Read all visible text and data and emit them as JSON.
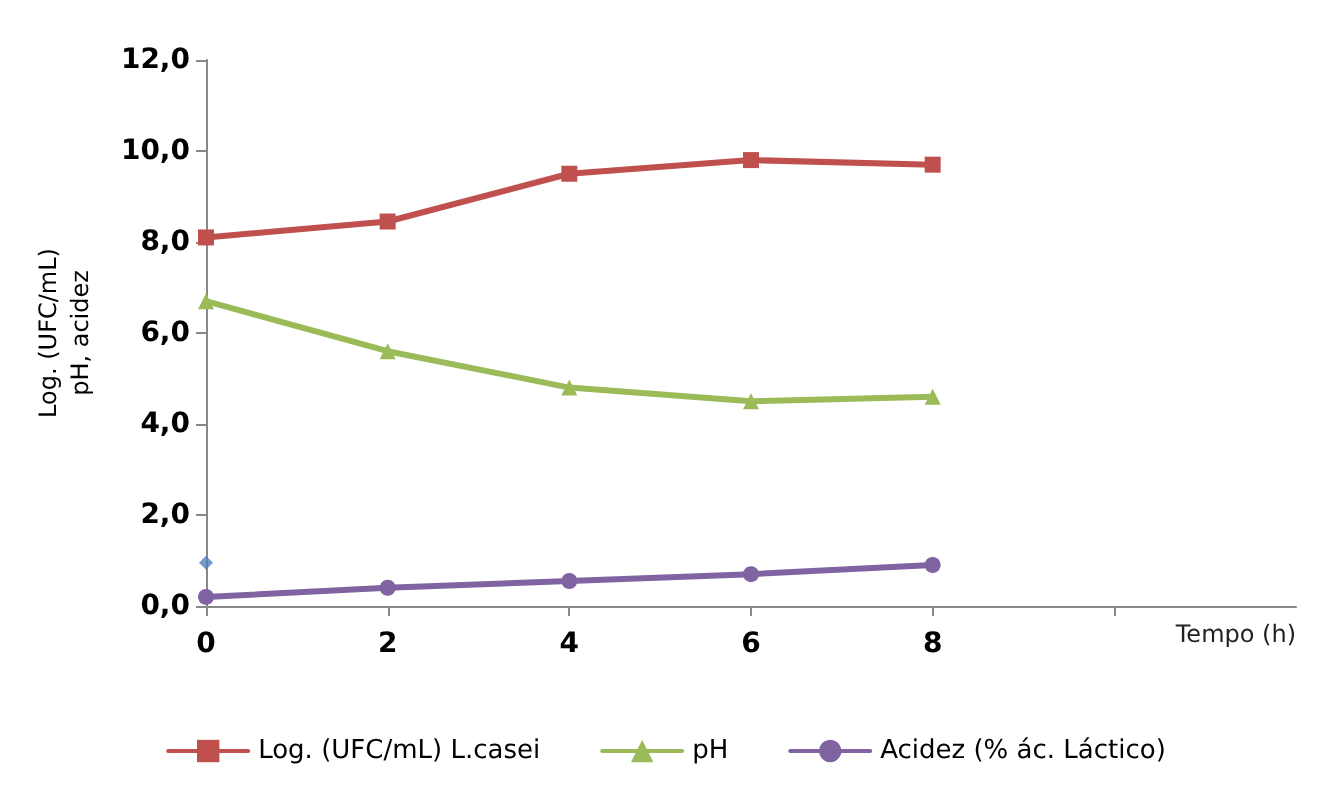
{
  "chart_data": {
    "type": "line",
    "xlabel": "Tempo (h)",
    "ylabel": "Log. (UFC/mL)\npH, acidez",
    "x": [
      0,
      2,
      4,
      6,
      8
    ],
    "xlim": [
      0,
      12
    ],
    "xticks": [
      0,
      2,
      4,
      6,
      8,
      {
        "value": 10,
        "label": null
      }
    ],
    "ylim": [
      0,
      12
    ],
    "yticks": [
      {
        "value": 0,
        "label": "0,0"
      },
      {
        "value": 2,
        "label": "2,0"
      },
      {
        "value": 4,
        "label": "4,0"
      },
      {
        "value": 6,
        "label": "6,0"
      },
      {
        "value": 8,
        "label": "8,0"
      },
      {
        "value": 10,
        "label": "10,0"
      },
      {
        "value": 12,
        "label": "12,0"
      }
    ],
    "grid": false,
    "legend": "bottom",
    "series": [
      {
        "name": "Log. (UFC/mL) L.casei",
        "color": "#c0504d",
        "marker": "square",
        "values": [
          8.1,
          8.45,
          9.5,
          9.8,
          9.7
        ]
      },
      {
        "name": "pH",
        "color": "#9bbb59",
        "marker": "triangle",
        "values": [
          6.7,
          5.6,
          4.8,
          4.5,
          4.6
        ]
      },
      {
        "name": "Acidez (% ác. Láctico)",
        "color": "#8064a2",
        "marker": "circle",
        "values": [
          0.2,
          0.4,
          0.55,
          0.7,
          0.9
        ]
      },
      {
        "type": "scatter",
        "color": "#4f81bd",
        "marker": "diamond",
        "x": [
          0
        ],
        "values": [
          0.95
        ]
      }
    ]
  }
}
